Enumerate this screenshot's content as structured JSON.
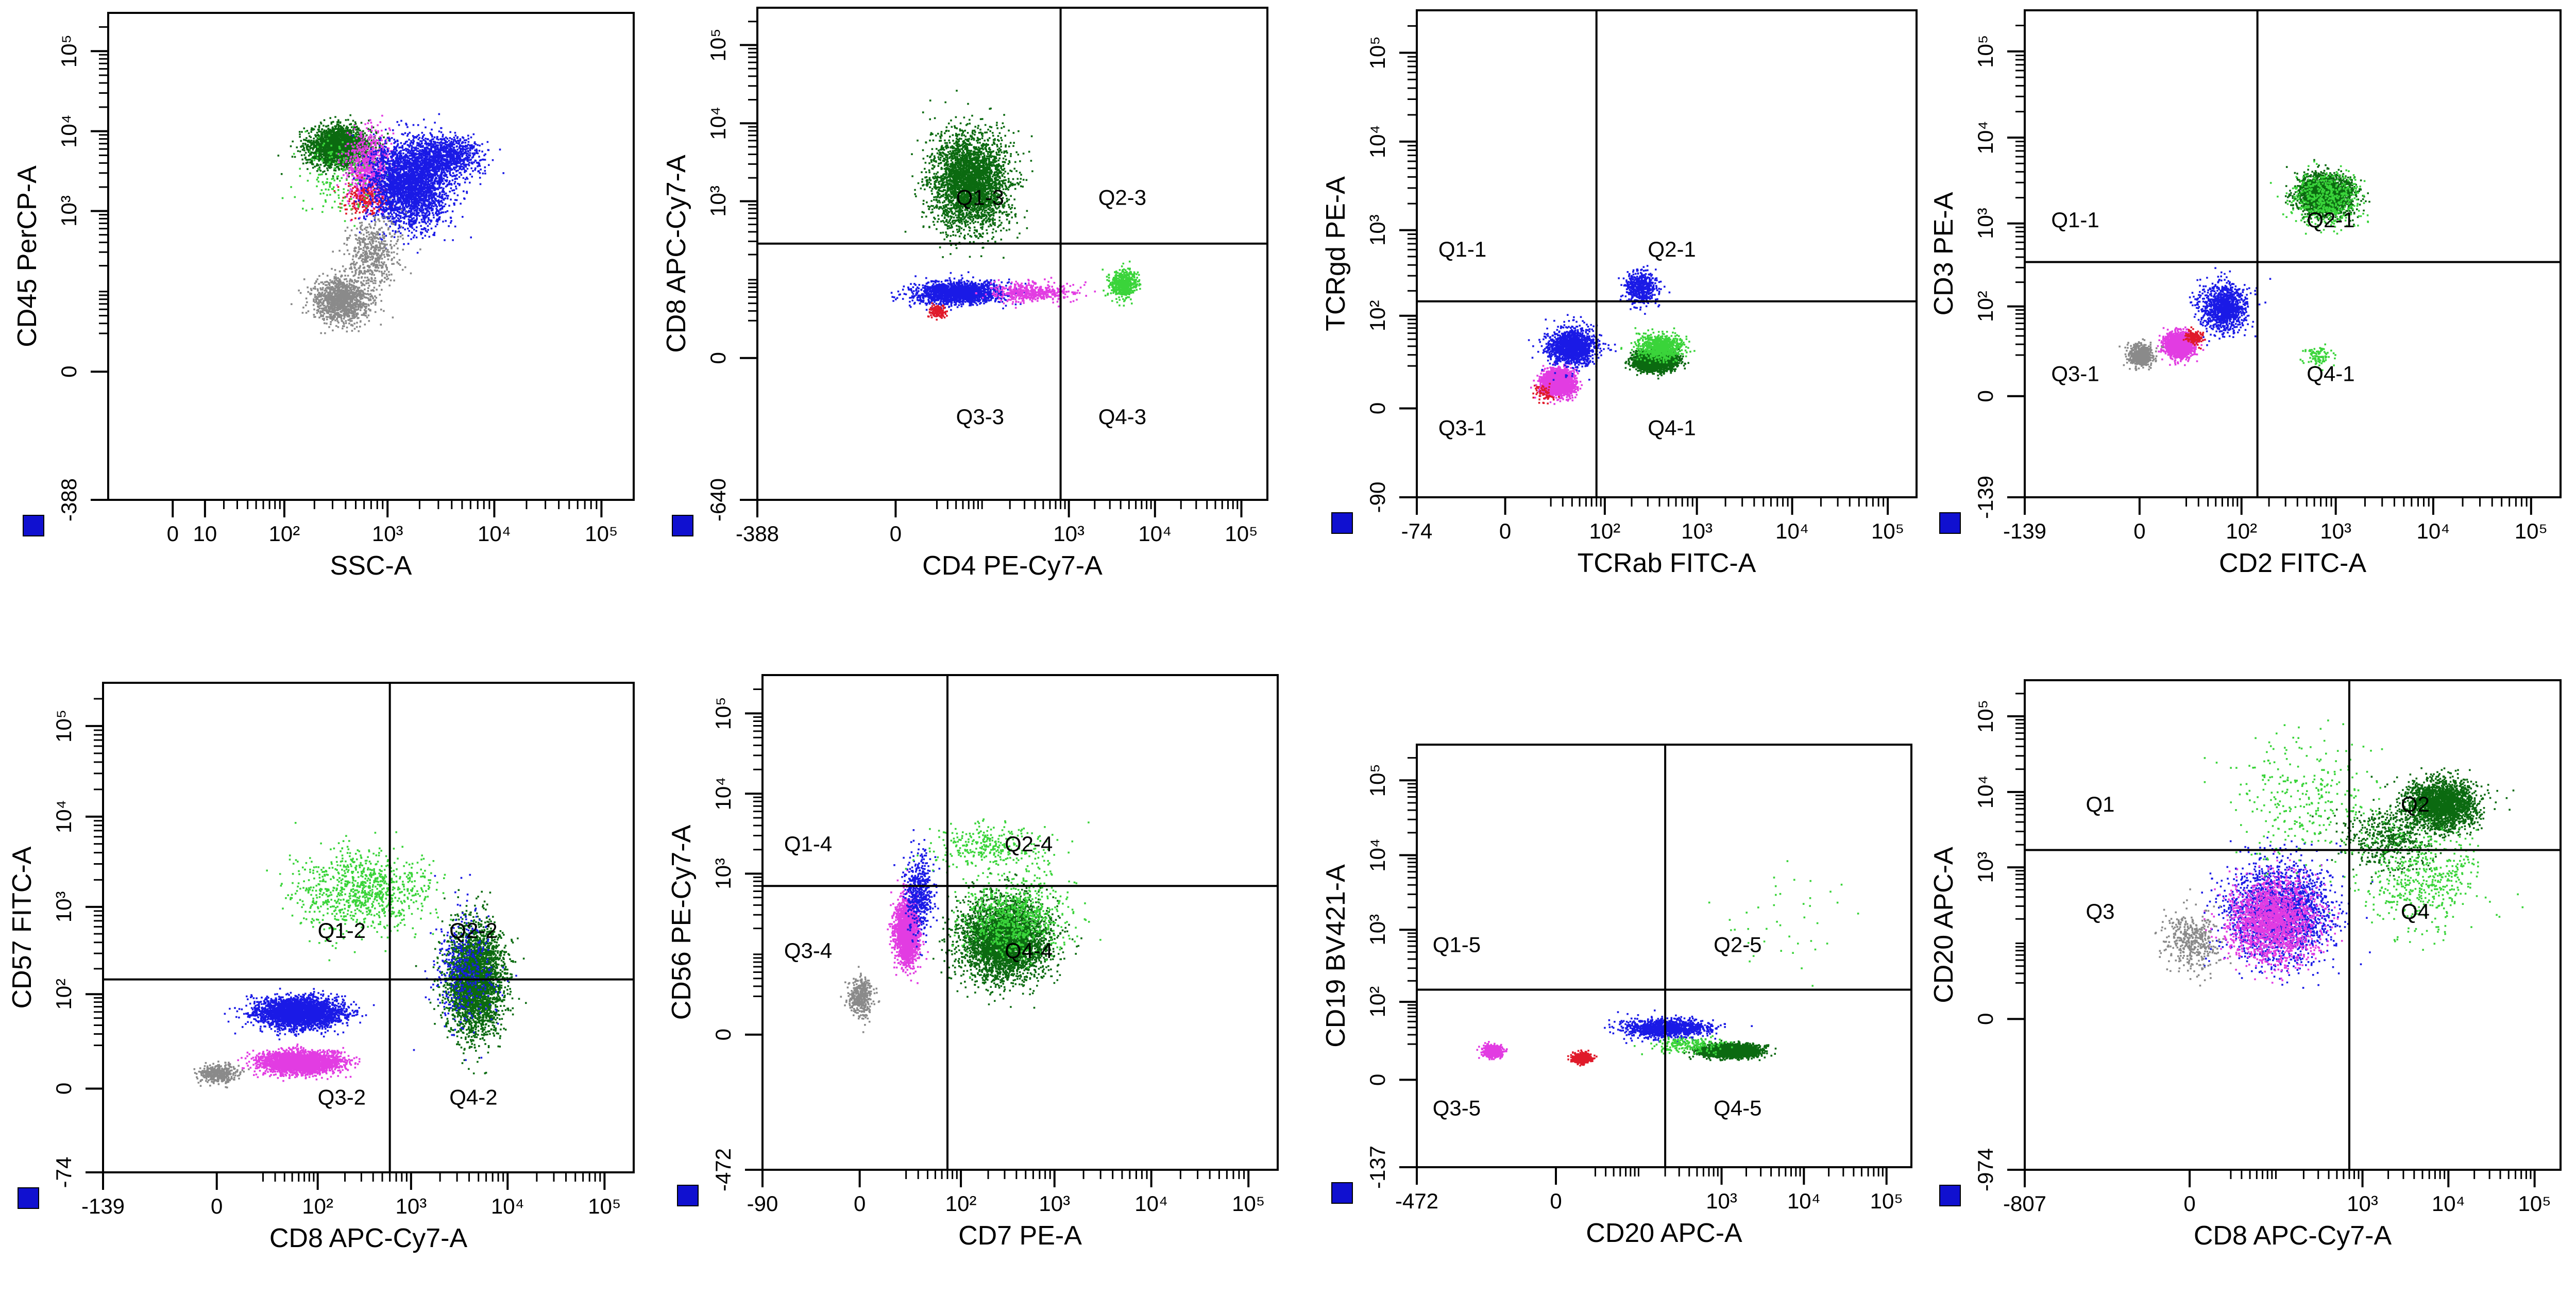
{
  "palette": {
    "dark_green": "#0b6a10",
    "green": "#3ad43a",
    "blue": "#1a1ae6",
    "magenta": "#e23ce2",
    "red": "#e01a2a",
    "gray": "#8a8a8a",
    "frame": "#000000",
    "corner_marker": "#1010d0"
  },
  "chart_data": [
    {
      "id": "p1",
      "type": "scatter",
      "scale": "biexponential",
      "xlabel": "SSC-A",
      "ylabel": "CD45 PerCP-A",
      "xlim": [
        -30,
        200000
      ],
      "ylim": [
        -388,
        300000
      ],
      "x_ticks": [
        {
          "v": 0,
          "t": "0"
        },
        {
          "v": 10,
          "t": "10"
        },
        {
          "v": 100,
          "t": "10²"
        },
        {
          "v": 1000,
          "t": "10³"
        },
        {
          "v": 10000,
          "t": "10⁴"
        },
        {
          "v": 100000,
          "t": "10⁵"
        }
      ],
      "y_ticks": [
        {
          "v": -388,
          "t": "-388"
        },
        {
          "v": 0,
          "t": "0"
        },
        {
          "v": 1000,
          "t": "10³"
        },
        {
          "v": 10000,
          "t": "10⁴"
        },
        {
          "v": 100000,
          "t": "10⁵"
        }
      ],
      "quadrant": null,
      "labels": [],
      "populations": [
        {
          "color": "dark_green",
          "n": 2600,
          "cx": 350,
          "cy": 6500,
          "sx": 0.14,
          "sy": 0.12
        },
        {
          "color": "magenta",
          "n": 900,
          "cx": 650,
          "cy": 3500,
          "sx": 0.1,
          "sy": 0.22
        },
        {
          "color": "red",
          "n": 200,
          "cx": 600,
          "cy": 1500,
          "sx": 0.1,
          "sy": 0.1
        },
        {
          "color": "green",
          "n": 160,
          "cx": 350,
          "cy": 3000,
          "sx": 0.2,
          "sy": 0.25
        },
        {
          "color": "blue",
          "n": 3000,
          "cx": 1600,
          "cy": 2200,
          "sx": 0.18,
          "sy": 0.25
        },
        {
          "color": "blue",
          "n": 900,
          "cx": 3500,
          "cy": 5000,
          "sx": 0.16,
          "sy": 0.12
        },
        {
          "color": "gray",
          "n": 1200,
          "cx": 350,
          "cy": 70,
          "sx": 0.13,
          "sy": 0.14
        },
        {
          "color": "gray",
          "n": 500,
          "cx": 700,
          "cy": 300,
          "sx": 0.12,
          "sy": 0.22
        }
      ]
    },
    {
      "id": "p2",
      "type": "scatter",
      "scale": "biexponential",
      "xlabel": "CD4 PE-Cy7-A",
      "ylabel": "CD8 APC-Cy7-A",
      "xlim": [
        -388,
        200000
      ],
      "ylim": [
        -640,
        300000
      ],
      "x_ticks": [
        {
          "v": -388,
          "t": "-388"
        },
        {
          "v": 0,
          "t": "0"
        },
        {
          "v": 1000,
          "t": "10³"
        },
        {
          "v": 10000,
          "t": "10⁴"
        },
        {
          "v": 100000,
          "t": "10⁵"
        }
      ],
      "y_ticks": [
        {
          "v": -640,
          "t": "-640"
        },
        {
          "v": 0,
          "t": "0"
        },
        {
          "v": 1000,
          "t": "10³"
        },
        {
          "v": 10000,
          "t": "10⁴"
        },
        {
          "v": 100000,
          "t": "10⁵"
        }
      ],
      "quadrant": {
        "x": 800,
        "y": 280
      },
      "labels": [
        {
          "t": "Q1-3",
          "x": 40,
          "y": 900
        },
        {
          "t": "Q2-3",
          "x": 2200,
          "y": 900
        },
        {
          "t": "Q3-3",
          "x": 40,
          "y": -60
        },
        {
          "t": "Q4-3",
          "x": 2200,
          "y": -60
        }
      ],
      "populations": [
        {
          "color": "dark_green",
          "n": 3200,
          "cx": 60,
          "cy": 1800,
          "sx": 0.22,
          "sy": 0.3
        },
        {
          "color": "blue",
          "n": 1800,
          "cx": 40,
          "cy": 60,
          "sx": 0.25,
          "sy": 0.07
        },
        {
          "color": "magenta",
          "n": 500,
          "cx": 350,
          "cy": 60,
          "sx": 0.22,
          "sy": 0.06
        },
        {
          "color": "red",
          "n": 150,
          "cx": 20,
          "cy": 30,
          "sx": 0.05,
          "sy": 0.04
        },
        {
          "color": "green",
          "n": 500,
          "cx": 4200,
          "cy": 80,
          "sx": 0.08,
          "sy": 0.09
        }
      ]
    },
    {
      "id": "p3",
      "type": "scatter",
      "scale": "biexponential",
      "xlabel": "TCRab FITC-A",
      "ylabel": "TCRgd PE-A",
      "xlim": [
        -74,
        200000
      ],
      "ylim": [
        -90,
        300000
      ],
      "x_ticks": [
        {
          "v": -74,
          "t": "-74"
        },
        {
          "v": 0,
          "t": "0"
        },
        {
          "v": 100,
          "t": "10²"
        },
        {
          "v": 1000,
          "t": "10³"
        },
        {
          "v": 10000,
          "t": "10⁴"
        },
        {
          "v": 100000,
          "t": "10⁵"
        }
      ],
      "y_ticks": [
        {
          "v": -90,
          "t": "-90"
        },
        {
          "v": 0,
          "t": "0"
        },
        {
          "v": 100,
          "t": "10²"
        },
        {
          "v": 1000,
          "t": "10³"
        },
        {
          "v": 10000,
          "t": "10⁴"
        },
        {
          "v": 100000,
          "t": "10⁵"
        }
      ],
      "quadrant": {
        "x": 80,
        "y": 150
      },
      "labels": [
        {
          "t": "Q1-1",
          "x": -40,
          "y": 500
        },
        {
          "t": "Q2-1",
          "x": 300,
          "y": 500
        },
        {
          "t": "Q3-1",
          "x": -40,
          "y": -10
        },
        {
          "t": "Q4-1",
          "x": 300,
          "y": -10
        }
      ],
      "populations": [
        {
          "color": "magenta",
          "n": 2200,
          "cx": 25,
          "cy": 10,
          "sx": 0.08,
          "sy": 0.07
        },
        {
          "color": "blue",
          "n": 1500,
          "cx": 40,
          "cy": 40,
          "sx": 0.12,
          "sy": 0.1
        },
        {
          "color": "blue",
          "n": 500,
          "cx": 250,
          "cy": 220,
          "sx": 0.08,
          "sy": 0.09
        },
        {
          "color": "dark_green",
          "n": 3000,
          "cx": 350,
          "cy": 25,
          "sx": 0.1,
          "sy": 0.05
        },
        {
          "color": "green",
          "n": 700,
          "cx": 400,
          "cy": 40,
          "sx": 0.12,
          "sy": 0.07
        },
        {
          "color": "red",
          "n": 60,
          "cx": 15,
          "cy": 5,
          "sx": 0.05,
          "sy": 0.05
        }
      ]
    },
    {
      "id": "p4",
      "type": "scatter",
      "scale": "biexponential",
      "xlabel": "CD2 FITC-A",
      "ylabel": "CD3 PE-A",
      "xlim": [
        -139,
        200000
      ],
      "ylim": [
        -139,
        300000
      ],
      "x_ticks": [
        {
          "v": -139,
          "t": "-139"
        },
        {
          "v": 0,
          "t": "0"
        },
        {
          "v": 100,
          "t": "10²"
        },
        {
          "v": 1000,
          "t": "10³"
        },
        {
          "v": 10000,
          "t": "10⁴"
        },
        {
          "v": 100000,
          "t": "10⁵"
        }
      ],
      "y_ticks": [
        {
          "v": -139,
          "t": "-139"
        },
        {
          "v": 0,
          "t": "0"
        },
        {
          "v": 100,
          "t": "10²"
        },
        {
          "v": 1000,
          "t": "10³"
        },
        {
          "v": 10000,
          "t": "10⁴"
        },
        {
          "v": 100000,
          "t": "10⁵"
        }
      ],
      "quadrant": {
        "x": 150,
        "y": 350
      },
      "labels": [
        {
          "t": "Q1-1",
          "x": -70,
          "y": 900
        },
        {
          "t": "Q2-1",
          "x": 500,
          "y": 900
        },
        {
          "t": "Q3-1",
          "x": -70,
          "y": 5
        },
        {
          "t": "Q4-1",
          "x": 500,
          "y": 5
        }
      ],
      "populations": [
        {
          "color": "dark_green",
          "n": 2600,
          "cx": 750,
          "cy": 2200,
          "sx": 0.13,
          "sy": 0.11
        },
        {
          "color": "green",
          "n": 500,
          "cx": 800,
          "cy": 2000,
          "sx": 0.18,
          "sy": 0.16
        },
        {
          "color": "magenta",
          "n": 1600,
          "cx": 15,
          "cy": 30,
          "sx": 0.07,
          "sy": 0.07
        },
        {
          "color": "gray",
          "n": 600,
          "cx": 0,
          "cy": 20,
          "sx": 0.06,
          "sy": 0.06
        },
        {
          "color": "blue",
          "n": 1100,
          "cx": 60,
          "cy": 100,
          "sx": 0.12,
          "sy": 0.13
        },
        {
          "color": "red",
          "n": 160,
          "cx": 25,
          "cy": 40,
          "sx": 0.04,
          "sy": 0.04
        },
        {
          "color": "green",
          "n": 90,
          "cx": 650,
          "cy": 20,
          "sx": 0.07,
          "sy": 0.05
        }
      ]
    },
    {
      "id": "p5",
      "type": "scatter",
      "scale": "biexponential",
      "xlabel": "CD8 APC-Cy7-A",
      "ylabel": "CD57 FITC-A",
      "xlim": [
        -139,
        200000
      ],
      "ylim": [
        -74,
        300000
      ],
      "x_ticks": [
        {
          "v": -139,
          "t": "-139"
        },
        {
          "v": 0,
          "t": "0"
        },
        {
          "v": 100,
          "t": "10²"
        },
        {
          "v": 1000,
          "t": "10³"
        },
        {
          "v": 10000,
          "t": "10⁴"
        },
        {
          "v": 100000,
          "t": "10⁵"
        }
      ],
      "y_ticks": [
        {
          "v": -74,
          "t": "-74"
        },
        {
          "v": 0,
          "t": "0"
        },
        {
          "v": 100,
          "t": "10²"
        },
        {
          "v": 1000,
          "t": "10³"
        },
        {
          "v": 10000,
          "t": "10⁴"
        },
        {
          "v": 100000,
          "t": "10⁵"
        }
      ],
      "quadrant": {
        "x": 600,
        "y": 150
      },
      "labels": [
        {
          "t": "Q1-2",
          "x": 100,
          "y": 450
        },
        {
          "t": "Q2-2",
          "x": 2500,
          "y": 450
        },
        {
          "t": "Q3-2",
          "x": 100,
          "y": -5
        },
        {
          "t": "Q4-2",
          "x": 2500,
          "y": -5
        }
      ],
      "populations": [
        {
          "color": "blue",
          "n": 3000,
          "cx": 60,
          "cy": 60,
          "sx": 0.22,
          "sy": 0.08
        },
        {
          "color": "magenta",
          "n": 2800,
          "cx": 60,
          "cy": 10,
          "sx": 0.2,
          "sy": 0.06
        },
        {
          "color": "gray",
          "n": 400,
          "cx": 0,
          "cy": 5,
          "sx": 0.1,
          "sy": 0.05
        },
        {
          "color": "green",
          "n": 900,
          "cx": 300,
          "cy": 1500,
          "sx": 0.35,
          "sy": 0.22
        },
        {
          "color": "dark_green",
          "n": 3200,
          "cx": 4500,
          "cy": 150,
          "sx": 0.14,
          "sy": 0.3
        },
        {
          "color": "blue",
          "n": 400,
          "cx": 3500,
          "cy": 200,
          "sx": 0.16,
          "sy": 0.3
        }
      ]
    },
    {
      "id": "p6",
      "type": "scatter",
      "scale": "biexponential",
      "xlabel": "CD7 PE-A",
      "ylabel": "CD56 PE-Cy7-A",
      "xlim": [
        -90,
        200000
      ],
      "ylim": [
        -472,
        300000
      ],
      "x_ticks": [
        {
          "v": -90,
          "t": "-90"
        },
        {
          "v": 0,
          "t": "0"
        },
        {
          "v": 100,
          "t": "10²"
        },
        {
          "v": 1000,
          "t": "10³"
        },
        {
          "v": 10000,
          "t": "10⁴"
        },
        {
          "v": 100000,
          "t": "10⁵"
        }
      ],
      "y_ticks": [
        {
          "v": -472,
          "t": "-472"
        },
        {
          "v": 0,
          "t": "0"
        },
        {
          "v": 1000,
          "t": "10³"
        },
        {
          "v": 10000,
          "t": "10⁴"
        },
        {
          "v": 100000,
          "t": "10⁵"
        }
      ],
      "quadrant": {
        "x": 70,
        "y": 700
      },
      "labels": [
        {
          "t": "Q1-4",
          "x": -50,
          "y": 1900
        },
        {
          "t": "Q2-4",
          "x": 300,
          "y": 1900
        },
        {
          "t": "Q3-4",
          "x": -50,
          "y": 80
        },
        {
          "t": "Q4-4",
          "x": 300,
          "y": 80
        }
      ],
      "populations": [
        {
          "color": "dark_green",
          "n": 3600,
          "cx": 300,
          "cy": 150,
          "sx": 0.22,
          "sy": 0.25
        },
        {
          "color": "green",
          "n": 700,
          "cx": 400,
          "cy": 300,
          "sx": 0.25,
          "sy": 0.25
        },
        {
          "color": "magenta",
          "n": 1900,
          "cx": 20,
          "cy": 180,
          "sx": 0.06,
          "sy": 0.2
        },
        {
          "color": "blue",
          "n": 500,
          "cx": 30,
          "cy": 600,
          "sx": 0.07,
          "sy": 0.25
        },
        {
          "color": "gray",
          "n": 400,
          "cx": 0,
          "cy": 20,
          "sx": 0.06,
          "sy": 0.12
        },
        {
          "color": "green",
          "n": 300,
          "cx": 200,
          "cy": 2200,
          "sx": 0.3,
          "sy": 0.14
        }
      ]
    },
    {
      "id": "p7",
      "type": "scatter",
      "scale": "biexponential",
      "xlabel": "CD20 APC-A",
      "ylabel": "CD19 BV421-A",
      "xlim": [
        -472,
        200000
      ],
      "ylim": [
        -137,
        300000
      ],
      "x_ticks": [
        {
          "v": -472,
          "t": "-472"
        },
        {
          "v": 0,
          "t": "0"
        },
        {
          "v": 1000,
          "t": "10³"
        },
        {
          "v": 10000,
          "t": "10⁴"
        },
        {
          "v": 100000,
          "t": "10⁵"
        }
      ],
      "y_ticks": [
        {
          "v": -137,
          "t": "-137"
        },
        {
          "v": 0,
          "t": "0"
        },
        {
          "v": 100,
          "t": "10²"
        },
        {
          "v": 1000,
          "t": "10³"
        },
        {
          "v": 10000,
          "t": "10⁴"
        },
        {
          "v": 100000,
          "t": "10⁵"
        }
      ],
      "quadrant": {
        "x": 200,
        "y": 150
      },
      "labels": [
        {
          "t": "Q1-5",
          "x": -300,
          "y": 500
        },
        {
          "t": "Q2-5",
          "x": 800,
          "y": 500
        },
        {
          "t": "Q3-5",
          "x": -300,
          "y": -20
        },
        {
          "t": "Q4-5",
          "x": 800,
          "y": -20
        }
      ],
      "populations": [
        {
          "color": "blue",
          "n": 1200,
          "cx": 200,
          "cy": 40,
          "sx": 0.25,
          "sy": 0.06
        },
        {
          "color": "dark_green",
          "n": 3000,
          "cx": 1200,
          "cy": 15,
          "sx": 0.16,
          "sy": 0.04
        },
        {
          "color": "red",
          "n": 700,
          "cx": 10,
          "cy": 10,
          "sx": 0.05,
          "sy": 0.03
        },
        {
          "color": "magenta",
          "n": 500,
          "cx": -50,
          "cy": 15,
          "sx": 0.06,
          "sy": 0.04
        },
        {
          "color": "green",
          "n": 200,
          "cx": 400,
          "cy": 20,
          "sx": 0.2,
          "sy": 0.05
        },
        {
          "color": "green",
          "n": 40,
          "cx": 5000,
          "cy": 1500,
          "sx": 0.4,
          "sy": 0.35
        }
      ]
    },
    {
      "id": "p8",
      "type": "scatter",
      "scale": "biexponential",
      "xlabel": "CD8 APC-Cy7-A",
      "ylabel": "CD20 APC-A",
      "xlim": [
        -807,
        200000
      ],
      "ylim": [
        -974,
        300000
      ],
      "x_ticks": [
        {
          "v": -807,
          "t": "-807"
        },
        {
          "v": 0,
          "t": "0"
        },
        {
          "v": 1000,
          "t": "10³"
        },
        {
          "v": 10000,
          "t": "10⁴"
        },
        {
          "v": 100000,
          "t": "10⁵"
        }
      ],
      "y_ticks": [
        {
          "v": -974,
          "t": "-974"
        },
        {
          "v": 0,
          "t": "0"
        },
        {
          "v": 1000,
          "t": "10³"
        },
        {
          "v": 10000,
          "t": "10⁴"
        },
        {
          "v": 100000,
          "t": "10⁵"
        }
      ],
      "quadrant": {
        "x": 700,
        "y": 1700
      },
      "labels": [
        {
          "t": "Q1",
          "x": -150,
          "y": 5500
        },
        {
          "t": "Q2",
          "x": 2800,
          "y": 5500
        },
        {
          "t": "Q3",
          "x": -150,
          "y": 200
        },
        {
          "t": "Q4",
          "x": 2800,
          "y": 200
        }
      ],
      "populations": [
        {
          "color": "blue",
          "n": 2200,
          "cx": 100,
          "cy": 250,
          "sx": 0.3,
          "sy": 0.32
        },
        {
          "color": "magenta",
          "n": 1800,
          "cx": 80,
          "cy": 200,
          "sx": 0.25,
          "sy": 0.28
        },
        {
          "color": "gray",
          "n": 400,
          "cx": 0,
          "cy": 100,
          "sx": 0.15,
          "sy": 0.2
        },
        {
          "color": "dark_green",
          "n": 2200,
          "cx": 8000,
          "cy": 7000,
          "sx": 0.2,
          "sy": 0.16
        },
        {
          "color": "dark_green",
          "n": 500,
          "cx": 2000,
          "cy": 2500,
          "sx": 0.25,
          "sy": 0.2
        },
        {
          "color": "green",
          "n": 500,
          "cx": 5000,
          "cy": 700,
          "sx": 0.35,
          "sy": 0.35
        },
        {
          "color": "green",
          "n": 300,
          "cx": 200,
          "cy": 8000,
          "sx": 0.4,
          "sy": 0.4
        }
      ]
    }
  ]
}
